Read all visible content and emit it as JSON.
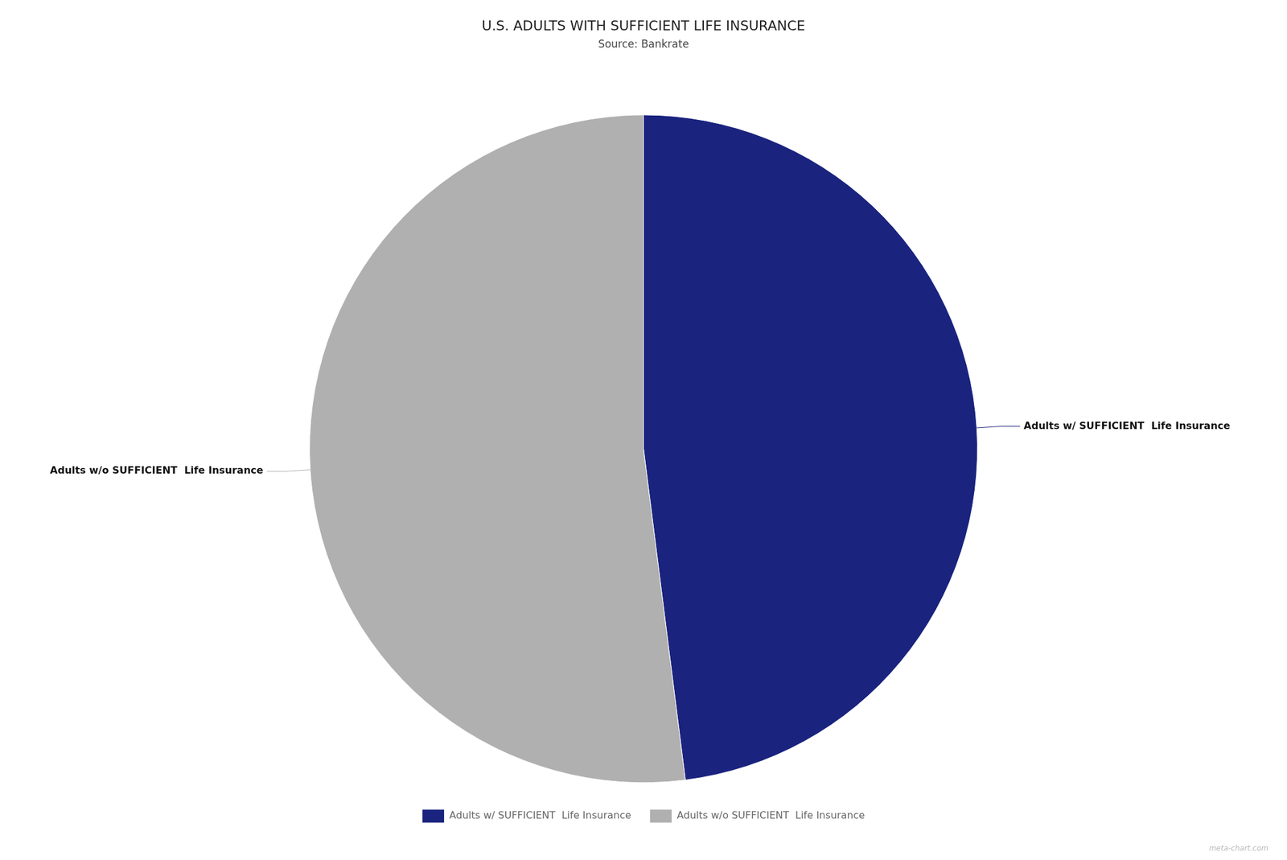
{
  "chart_data": {
    "type": "pie",
    "title": "U.S. ADULTS WITH SUFFICIENT LIFE INSURANCE",
    "subtitle": "Source: Bankrate",
    "categories": [
      "Adults w/ SUFFICIENT  Life Insurance",
      "Adults w/o SUFFICIENT  Life Insurance"
    ],
    "values": [
      48,
      52
    ],
    "colors": [
      "#1a237e",
      "#b0b0b0"
    ],
    "legend": "bottom",
    "annotations": [
      "meta-chart.com"
    ]
  }
}
